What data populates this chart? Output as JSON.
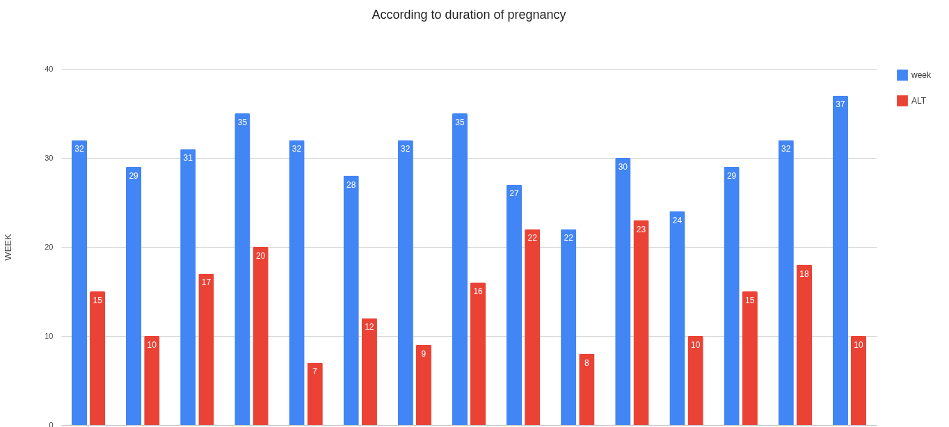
{
  "chart_data": {
    "type": "bar",
    "title": "According to  duration of pregnancy",
    "ylabel": "WEEK",
    "categories": [
      null,
      null,
      null,
      null,
      null,
      null,
      null,
      null,
      null,
      null,
      null,
      null,
      null,
      null,
      null
    ],
    "series": [
      {
        "name": "week",
        "color": "#4285f4",
        "values": [
          32,
          29,
          31,
          35,
          32,
          28,
          32,
          35,
          27,
          22,
          30,
          24,
          29,
          32,
          37
        ]
      },
      {
        "name": "ALT",
        "color": "#ea4335",
        "values": [
          15,
          10,
          17,
          20,
          7,
          12,
          9,
          16,
          22,
          8,
          23,
          10,
          15,
          18,
          10
        ]
      }
    ],
    "ylim": [
      0,
      40
    ],
    "yticks": [
      0,
      10,
      20,
      30,
      40
    ],
    "grid": "y",
    "legend": "top right",
    "data_labels": true
  }
}
